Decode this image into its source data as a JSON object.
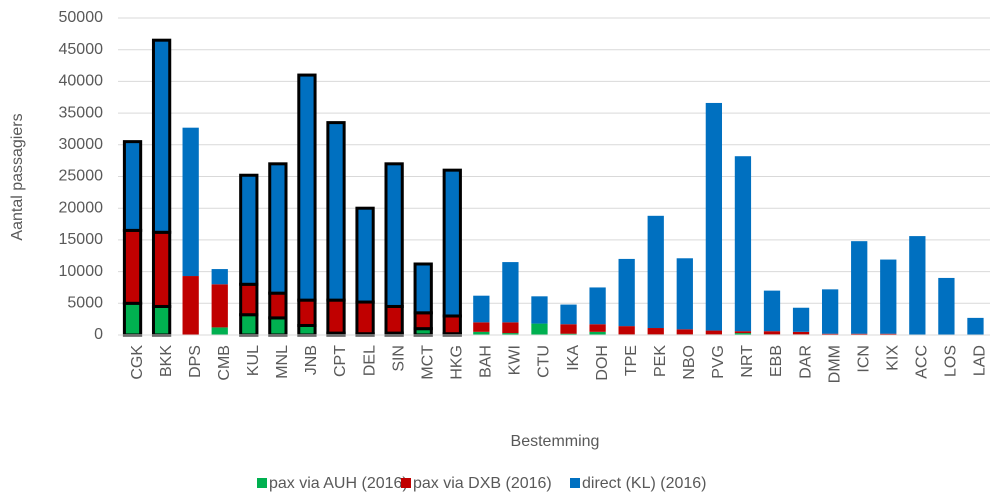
{
  "chart_data": {
    "type": "stacked_bar",
    "x_label": "Bestemming",
    "y_label": "Aantal passagiers",
    "categories": [
      "CGK",
      "BKK",
      "DPS",
      "CMB",
      "KUL",
      "MNL",
      "JNB",
      "CPT",
      "DEL",
      "SIN",
      "MCT",
      "HKG",
      "BAH",
      "KWI",
      "CTU",
      "IKA",
      "DOH",
      "TPE",
      "PEK",
      "NBO",
      "PVG",
      "NRT",
      "EBB",
      "DAR",
      "DMM",
      "ICN",
      "KIX",
      "ACC",
      "LOS",
      "LAD"
    ],
    "series": [
      {
        "name": "pax via AUH (2016)",
        "color": "#00b050",
        "values": [
          5000,
          4500,
          0,
          1200,
          3200,
          2700,
          1500,
          300,
          200,
          300,
          1000,
          200,
          500,
          300,
          1800,
          200,
          500,
          100,
          100,
          100,
          100,
          300,
          100,
          100,
          0,
          0,
          0,
          0,
          0,
          0
        ]
      },
      {
        "name": "pax via DXB (2016)",
        "color": "#c00000",
        "values": [
          11500,
          11700,
          9300,
          6800,
          4800,
          3900,
          4000,
          5200,
          5000,
          4200,
          2500,
          2800,
          1500,
          1700,
          0,
          1500,
          1200,
          1300,
          1000,
          800,
          600,
          300,
          500,
          400,
          200,
          200,
          200,
          0,
          0,
          0
        ]
      },
      {
        "name": "direct (KL) (2016)",
        "color": "#0070c0",
        "values": [
          14000,
          30300,
          23400,
          2400,
          17200,
          20400,
          35500,
          28000,
          14800,
          22500,
          7700,
          23000,
          4200,
          9500,
          4300,
          3100,
          5800,
          10600,
          17700,
          11200,
          35900,
          27600,
          6400,
          3800,
          7000,
          14600,
          11700,
          15600,
          9000,
          2700
        ]
      }
    ],
    "outlined": [
      true,
      true,
      false,
      false,
      true,
      true,
      true,
      true,
      true,
      true,
      true,
      true,
      false,
      false,
      false,
      false,
      false,
      false,
      false,
      false,
      false,
      false,
      false,
      false,
      false,
      false,
      false,
      false,
      false,
      false
    ],
    "outline_color": "#000000",
    "ylim": [
      0,
      50000
    ],
    "yticks": [
      0,
      5000,
      10000,
      15000,
      20000,
      25000,
      30000,
      35000,
      40000,
      45000,
      50000
    ],
    "grid": true,
    "legend": "bottom"
  }
}
